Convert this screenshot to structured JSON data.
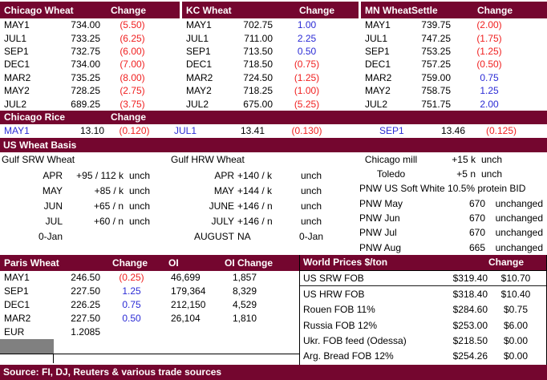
{
  "colors": {
    "header_maroon": "#74062F",
    "negative_red": "#F02020",
    "positive_blue": "#2B2BD5",
    "selected_gray": "#808080"
  },
  "futures": [
    {
      "title": "Chicago Wheat",
      "change_header": "Change",
      "rows": [
        {
          "c": "MAY1",
          "s": "734.00",
          "ch": "(5.50)",
          "dir": "dn"
        },
        {
          "c": "JUL1",
          "s": "733.25",
          "ch": "(6.25)",
          "dir": "dn"
        },
        {
          "c": "SEP1",
          "s": "732.75",
          "ch": "(6.00)",
          "dir": "dn"
        },
        {
          "c": "DEC1",
          "s": "734.00",
          "ch": "(7.00)",
          "dir": "dn"
        },
        {
          "c": "MAR2",
          "s": "735.25",
          "ch": "(8.00)",
          "dir": "dn"
        },
        {
          "c": "MAY2",
          "s": "728.25",
          "ch": "(2.75)",
          "dir": "dn"
        },
        {
          "c": "JUL2",
          "s": "689.25",
          "ch": "(3.75)",
          "dir": "dn"
        }
      ]
    },
    {
      "title": "KC Wheat",
      "change_header": "Change",
      "rows": [
        {
          "c": "MAY1",
          "s": "702.75",
          "ch": "1.00",
          "dir": "up"
        },
        {
          "c": "JUL1",
          "s": "711.00",
          "ch": "2.25",
          "dir": "up"
        },
        {
          "c": "SEP1",
          "s": "713.50",
          "ch": "0.50",
          "dir": "up"
        },
        {
          "c": "DEC1",
          "s": "718.50",
          "ch": "(0.75)",
          "dir": "dn"
        },
        {
          "c": "MAR2",
          "s": "724.50",
          "ch": "(1.25)",
          "dir": "dn"
        },
        {
          "c": "MAY2",
          "s": "718.25",
          "ch": "(1.00)",
          "dir": "dn"
        },
        {
          "c": "JUL2",
          "s": "675.00",
          "ch": "(5.25)",
          "dir": "dn"
        }
      ]
    },
    {
      "title": "MN Wheat",
      "settle_header": "Settle",
      "change_header": "Change",
      "rows": [
        {
          "c": "MAY1",
          "s": "739.75",
          "ch": "(2.00)",
          "dir": "dn"
        },
        {
          "c": "JUL1",
          "s": "747.25",
          "ch": "(1.75)",
          "dir": "dn"
        },
        {
          "c": "SEP1",
          "s": "753.25",
          "ch": "(1.25)",
          "dir": "dn"
        },
        {
          "c": "DEC1",
          "s": "757.25",
          "ch": "(0.50)",
          "dir": "dn"
        },
        {
          "c": "MAR2",
          "s": "759.00",
          "ch": "0.75",
          "dir": "up"
        },
        {
          "c": "MAY2",
          "s": "758.75",
          "ch": "1.25",
          "dir": "up"
        },
        {
          "c": "JUL2",
          "s": "751.75",
          "ch": "2.00",
          "dir": "up"
        }
      ]
    }
  ],
  "rice": {
    "title": "Chicago Rice",
    "change_header": "Change",
    "entries": [
      {
        "c": "MAY1",
        "p": "13.10",
        "ch": "(0.120)",
        "dir": "dn"
      },
      {
        "c": "JUL1",
        "p": "13.41",
        "ch": "(0.130)",
        "dir": "dn"
      },
      {
        "c": "SEP1",
        "p": "13.46",
        "ch": "(0.125)",
        "dir": "dn"
      }
    ]
  },
  "basis": {
    "title": "US Wheat Basis",
    "srw": {
      "title": "Gulf SRW Wheat",
      "rows": [
        {
          "m": "APR",
          "v": "+95 / 112 k",
          "s": "unch"
        },
        {
          "m": "MAY",
          "v": "+85 / k",
          "s": "unch"
        },
        {
          "m": "JUN",
          "v": "+65 / n",
          "s": "unch"
        },
        {
          "m": "JUL",
          "v": "+60 / n",
          "s": "unch"
        },
        {
          "m": "0-Jan",
          "v": "",
          "s": ""
        }
      ]
    },
    "hrw": {
      "title": "Gulf HRW Wheat",
      "rows": [
        {
          "m": "APR",
          "v": "+140 / k",
          "s": "unch"
        },
        {
          "m": "MAY",
          "v": "+144 / k",
          "s": "unch"
        },
        {
          "m": "JUNE",
          "v": "+146 / n",
          "s": "unch"
        },
        {
          "m": "JULY",
          "v": "+146 / n",
          "s": "unch"
        },
        {
          "m": "AUGUST",
          "v": "NA",
          "s": "0-Jan"
        }
      ]
    },
    "pnw": {
      "mill_label": "Chicago mill",
      "mill_value": "+15 k",
      "mill_status": "unch",
      "toledo_label": "Toledo",
      "toledo_value": "+5 n",
      "toledo_status": "unch",
      "pnw_header": "PNW US Soft White 10.5% protein BID",
      "rows": [
        {
          "l": "PNW May",
          "v": "670",
          "s": "unchanged"
        },
        {
          "l": "PNW Jun",
          "v": "670",
          "s": "unchanged"
        },
        {
          "l": "PNW Jul",
          "v": "670",
          "s": "unchanged"
        },
        {
          "l": "PNW Aug",
          "v": "665",
          "s": "unchanged"
        }
      ]
    }
  },
  "paris": {
    "title": "Paris Wheat",
    "change_header": "Change",
    "oi_header": "OI",
    "oi_change_header": "OI Change",
    "rows": [
      {
        "c": "MAY1",
        "s": "246.50",
        "ch": "(0.25)",
        "dir": "dn",
        "oi": "46,699",
        "oic": "1,857"
      },
      {
        "c": "SEP1",
        "s": "227.50",
        "ch": "1.25",
        "dir": "up",
        "oi": "179,364",
        "oic": "8,329"
      },
      {
        "c": "DEC1",
        "s": "226.25",
        "ch": "0.75",
        "dir": "up",
        "oi": "212,150",
        "oic": "4,529"
      },
      {
        "c": "MAR2",
        "s": "227.50",
        "ch": "0.50",
        "dir": "up",
        "oi": "26,104",
        "oic": "1,810"
      }
    ],
    "eur_label": "EUR",
    "eur_value": "1.2085"
  },
  "world": {
    "title": "World Prices $/ton",
    "change_header": "Change",
    "rows": [
      {
        "n": "US SRW FOB",
        "p": "$319.40",
        "ch": "$10.70"
      },
      {
        "n": "US HRW FOB",
        "p": "$318.40",
        "ch": "$10.40"
      },
      {
        "n": "Rouen FOB 11%",
        "p": "$284.60",
        "ch": "$0.75"
      },
      {
        "n": "Russia FOB 12%",
        "p": "$253.00",
        "ch": "$6.00"
      },
      {
        "n": "Ukr. FOB feed (Odessa)",
        "p": "$218.50",
        "ch": "$0.00"
      },
      {
        "n": "Arg. Bread FOB 12%",
        "p": "$254.26",
        "ch": "$0.00"
      }
    ]
  },
  "footer": {
    "source": "Source: FI, DJ, Reuters & various trade sources"
  }
}
